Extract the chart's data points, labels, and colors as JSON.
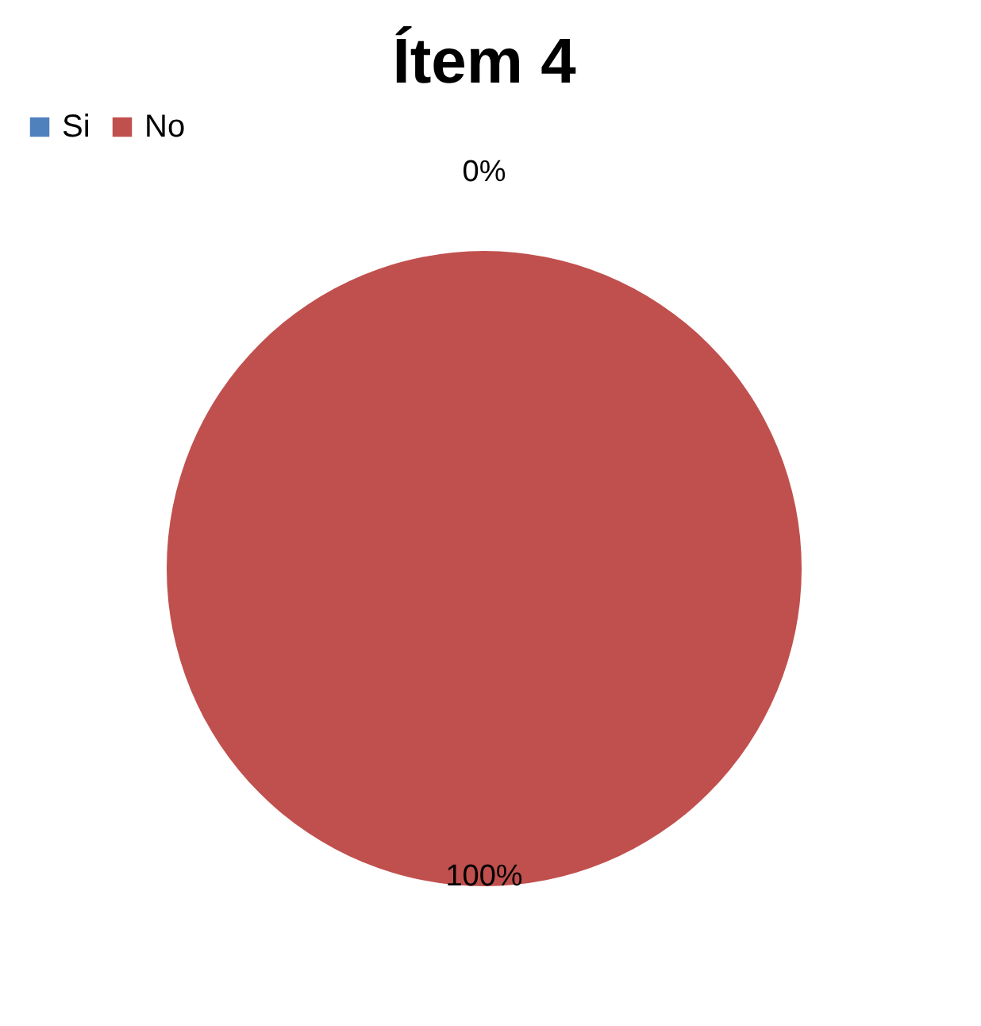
{
  "chart_data": {
    "type": "pie",
    "title": "Ítem 4",
    "categories": [
      "Si",
      "No"
    ],
    "values": [
      0,
      100
    ],
    "colors": [
      "#4f81bd",
      "#c0504d"
    ],
    "value_labels": [
      "0%",
      "100%"
    ],
    "legend": "top"
  }
}
